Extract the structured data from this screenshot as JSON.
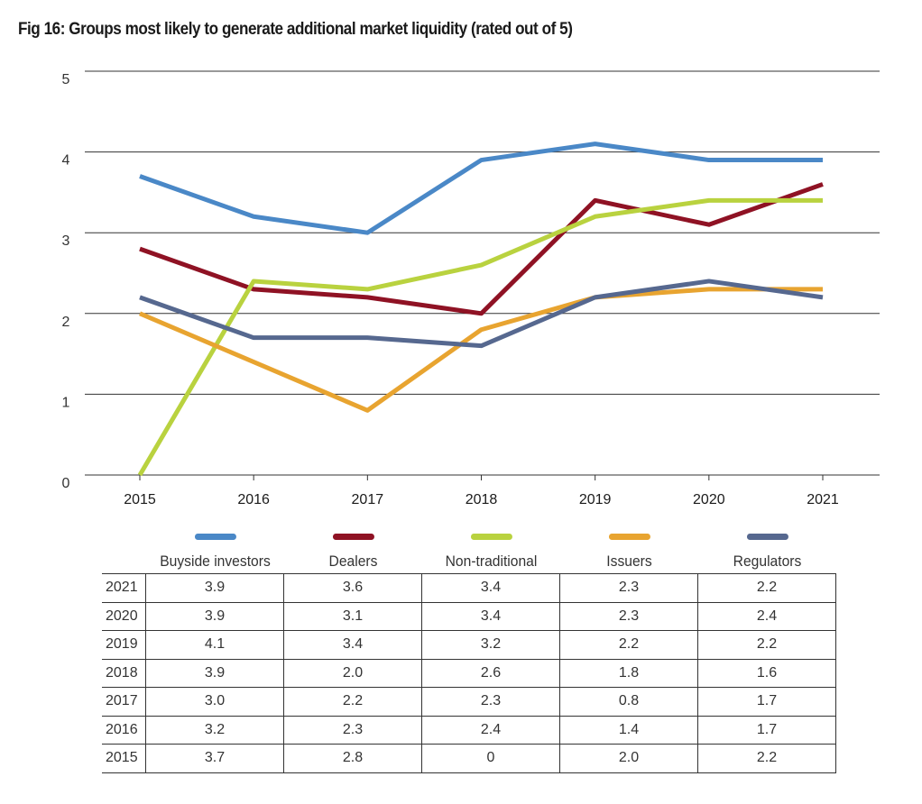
{
  "title": "Fig 16: Groups most likely to generate additional market liquidity (rated out of 5)",
  "chart_data": {
    "type": "line",
    "title": "Fig 16: Groups most likely to generate additional market liquidity (rated out of 5)",
    "x": [
      "2015",
      "2016",
      "2017",
      "2018",
      "2019",
      "2020",
      "2021"
    ],
    "ylim": [
      0,
      5
    ],
    "yticks": [
      0,
      1,
      2,
      3,
      4,
      5
    ],
    "grid": true,
    "legend_position": "bottom",
    "series": [
      {
        "name": "Buyside investors",
        "color": "#4a88c7",
        "values": [
          3.7,
          3.2,
          3.0,
          3.9,
          4.1,
          3.9,
          3.9
        ]
      },
      {
        "name": "Dealers",
        "color": "#8f1224",
        "values": [
          2.8,
          2.3,
          2.2,
          2.0,
          3.4,
          3.1,
          3.6
        ]
      },
      {
        "name": "Non-traditional",
        "color": "#b9d23f",
        "values": [
          0,
          2.4,
          2.3,
          2.6,
          3.2,
          3.4,
          3.4
        ]
      },
      {
        "name": "Issuers",
        "color": "#e8a430",
        "values": [
          2.0,
          1.4,
          0.8,
          1.8,
          2.2,
          2.3,
          2.3
        ]
      },
      {
        "name": "Regulators",
        "color": "#56688f",
        "values": [
          2.2,
          1.7,
          1.7,
          1.6,
          2.2,
          2.4,
          2.2
        ]
      }
    ]
  },
  "table": {
    "rows": [
      {
        "year": "2021",
        "cells": [
          "3.9",
          "3.6",
          "3.4",
          "2.3",
          "2.2"
        ]
      },
      {
        "year": "2020",
        "cells": [
          "3.9",
          "3.1",
          "3.4",
          "2.3",
          "2.4"
        ]
      },
      {
        "year": "2019",
        "cells": [
          "4.1",
          "3.4",
          "3.2",
          "2.2",
          "2.2"
        ]
      },
      {
        "year": "2018",
        "cells": [
          "3.9",
          "2.0",
          "2.6",
          "1.8",
          "1.6"
        ]
      },
      {
        "year": "2017",
        "cells": [
          "3.0",
          "2.2",
          "2.3",
          "0.8",
          "1.7"
        ]
      },
      {
        "year": "2016",
        "cells": [
          "3.2",
          "2.3",
          "2.4",
          "1.4",
          "1.7"
        ]
      },
      {
        "year": "2015",
        "cells": [
          "3.7",
          "2.8",
          "0",
          "2.0",
          "2.2"
        ]
      }
    ]
  }
}
